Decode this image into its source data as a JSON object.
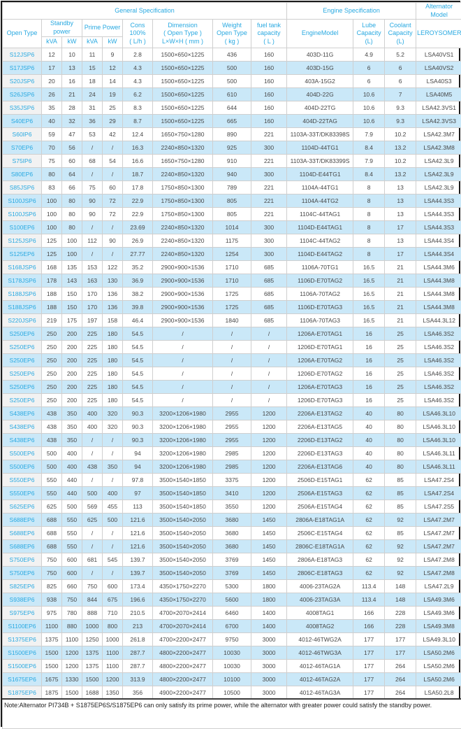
{
  "header": {
    "general": "General Specification",
    "engine_spec": "Engine Specification",
    "alternator_model": "Alternator Model",
    "open_type": "Open Type",
    "standby": "Standby\npower",
    "prime": "Prime Power",
    "kva": "kVA",
    "kw": "kW",
    "cons": "Cons\n100%\n( L/h )",
    "dimension": "Dimension\n( Open Type )\nL×W×H ( mm )",
    "weight": "Weight\nOpen Type\n( kg )",
    "fuel": "fuel tank\ncapacity\n( L )",
    "engine_model": "EngineModel",
    "lube": "Lube\nCapacity\n(L)",
    "coolant": "Coolant\nCapacity\n(L)",
    "leroysomer": "LEROYSOMER"
  },
  "row_fields": [
    "model",
    "standby_kva",
    "standby_kw",
    "prime_kva",
    "prime_kw",
    "cons_100pct_lh",
    "dimension_mm",
    "weight_kg",
    "fuel_tank_l",
    "engine_model",
    "lube_capacity_l",
    "coolant_capacity_l",
    "alternator"
  ],
  "rows": [
    [
      "S12JSP6",
      "12",
      "10",
      "11",
      "9",
      "2.8",
      "1500×650×1225",
      "436",
      "160",
      "403D-11G",
      "4.9",
      "5.2",
      "LSA40VS1"
    ],
    [
      "S17JSP6",
      "17",
      "13",
      "15",
      "12",
      "4.3",
      "1500×650×1225",
      "500",
      "160",
      "403D-15G",
      "6",
      "6",
      "LSA40VS2"
    ],
    [
      "S20JSP6",
      "20",
      "16",
      "18",
      "14",
      "4.3",
      "1500×650×1225",
      "500",
      "160",
      "403A-15G2",
      "6",
      "6",
      "LSA40S3"
    ],
    [
      "S26JSP6",
      "26",
      "21",
      "24",
      "19",
      "6.2",
      "1500×650×1225",
      "610",
      "160",
      "404D-22G",
      "10.6",
      "7",
      "LSA40M5"
    ],
    [
      "S35JSP6",
      "35",
      "28",
      "31",
      "25",
      "8.3",
      "1500×650×1225",
      "644",
      "160",
      "404D-22TG",
      "10.6",
      "9.3",
      "LSA42.3VS1"
    ],
    [
      "S40EP6",
      "40",
      "32",
      "36",
      "29",
      "8.7",
      "1500×650×1225",
      "665",
      "160",
      "404D-22TAG",
      "10.6",
      "9.3",
      "LSA42.3VS3"
    ],
    [
      "S60IP6",
      "59",
      "47",
      "53",
      "42",
      "12.4",
      "1650×750×1280",
      "890",
      "221",
      "1103A-33T/DK83398S",
      "7.9",
      "10.2",
      "LSA42.3M7"
    ],
    [
      "S70EP6",
      "70",
      "56",
      "/",
      "/",
      "16.3",
      "2240×850×1320",
      "925",
      "300",
      "1104D-44TG1",
      "8.4",
      "13.2",
      "LSA42.3M8"
    ],
    [
      "S75IP6",
      "75",
      "60",
      "68",
      "54",
      "16.6",
      "1650×750×1280",
      "910",
      "221",
      "1103A-33T/DK83399S",
      "7.9",
      "10.2",
      "LSA42.3L9"
    ],
    [
      "S80EP6",
      "80",
      "64",
      "/",
      "/",
      "18.7",
      "2240×850×1320",
      "940",
      "300",
      "1104D-E44TG1",
      "8.4",
      "13.2",
      "LSA42.3L9"
    ],
    [
      "S85JSP6",
      "83",
      "66",
      "75",
      "60",
      "17.8",
      "1750×850×1300",
      "789",
      "221",
      "1104A-44TG1",
      "8",
      "13",
      "LSA42.3L9"
    ],
    [
      "S100JSP6",
      "100",
      "80",
      "90",
      "72",
      "22.9",
      "1750×850×1300",
      "805",
      "221",
      "1104A-44TG2",
      "8",
      "13",
      "LSA44.3S3"
    ],
    [
      "S100JSP6",
      "100",
      "80",
      "90",
      "72",
      "22.9",
      "1750×850×1300",
      "805",
      "221",
      "1104C-44TAG1",
      "8",
      "13",
      "LSA44.3S3"
    ],
    [
      "S100EP6",
      "100",
      "80",
      "/",
      "/",
      "23.69",
      "2240×850×1320",
      "1014",
      "300",
      "1104D-E44TAG1",
      "8",
      "17",
      "LSA44.3S3"
    ],
    [
      "S125JSP6",
      "125",
      "100",
      "112",
      "90",
      "26.9",
      "2240×850×1320",
      "1175",
      "300",
      "1104C-44TAG2",
      "8",
      "13",
      "LSA44.3S4"
    ],
    [
      "S125EP6",
      "125",
      "100",
      "/",
      "/",
      "27.77",
      "2240×850×1320",
      "1254",
      "300",
      "1104D-E44TAG2",
      "8",
      "17",
      "LSA44.3S4"
    ],
    [
      "S168JSP6",
      "168",
      "135",
      "153",
      "122",
      "35.2",
      "2900×900×1536",
      "1710",
      "685",
      "1106A-70TG1",
      "16.5",
      "21",
      "LSA44.3M6"
    ],
    [
      "S178JSP6",
      "178",
      "143",
      "163",
      "130",
      "36.9",
      "2900×900×1536",
      "1710",
      "685",
      "1106D-E70TAG2",
      "16.5",
      "21",
      "LSA44.3M8"
    ],
    [
      "S188JSP6",
      "188",
      "150",
      "170",
      "136",
      "38.2",
      "2900×900×1536",
      "1725",
      "685",
      "1106A-70TAG2",
      "16.5",
      "21",
      "LSA44.3M8"
    ],
    [
      "S188JSP6",
      "188",
      "150",
      "170",
      "136",
      "39.8",
      "2900×900×1536",
      "1725",
      "685",
      "1106D-E70TAG3",
      "16.5",
      "21",
      "LSA44.3M8"
    ],
    [
      "S220JSP6",
      "219",
      "175",
      "197",
      "158",
      "46.4",
      "2900×900×1536",
      "1840",
      "685",
      "1106A-70TAG3",
      "16.5",
      "21",
      "LSA44.3L12"
    ],
    [
      "S250EP6",
      "250",
      "200",
      "225",
      "180",
      "54.5",
      "/",
      "/",
      "/",
      "1206A-E70TAG1",
      "16",
      "25",
      "LSA46.3S2"
    ],
    [
      "S250EP6",
      "250",
      "200",
      "225",
      "180",
      "54.5",
      "/",
      "/",
      "/",
      "1206D-E70TAG1",
      "16",
      "25",
      "LSA46.3S2"
    ],
    [
      "S250EP6",
      "250",
      "200",
      "225",
      "180",
      "54.5",
      "/",
      "/",
      "/",
      "1206A-E70TAG2",
      "16",
      "25",
      "LSA46.3S2"
    ],
    [
      "S250EP6",
      "250",
      "200",
      "225",
      "180",
      "54.5",
      "/",
      "/",
      "/",
      "1206D-E70TAG2",
      "16",
      "25",
      "LSA46.3S2"
    ],
    [
      "S250EP6",
      "250",
      "200",
      "225",
      "180",
      "54.5",
      "/",
      "/",
      "/",
      "1206A-E70TAG3",
      "16",
      "25",
      "LSA46.3S2"
    ],
    [
      "S250EP6",
      "250",
      "200",
      "225",
      "180",
      "54.5",
      "/",
      "/",
      "/",
      "1206D-E70TAG3",
      "16",
      "25",
      "LSA46.3S2"
    ],
    [
      "S438EP6",
      "438",
      "350",
      "400",
      "320",
      "90.3",
      "3200×1206×1980",
      "2955",
      "1200",
      "2206A-E13TAG2",
      "40",
      "80",
      "LSA46.3L10"
    ],
    [
      "S438EP6",
      "438",
      "350",
      "400",
      "320",
      "90.3",
      "3200×1206×1980",
      "2955",
      "1200",
      "2206A-E13TAG5",
      "40",
      "80",
      "LSA46.3L10"
    ],
    [
      "S438EP6",
      "438",
      "350",
      "/",
      "/",
      "90.3",
      "3200×1206×1980",
      "2955",
      "1200",
      "2206D-E13TAG2",
      "40",
      "80",
      "LSA46.3L10"
    ],
    [
      "S500EP6",
      "500",
      "400",
      "/",
      "/",
      "94",
      "3200×1206×1980",
      "2985",
      "1200",
      "2206D-E13TAG3",
      "40",
      "80",
      "LSA46.3L11"
    ],
    [
      "S500EP6",
      "500",
      "400",
      "438",
      "350",
      "94",
      "3200×1206×1980",
      "2985",
      "1200",
      "2206A-E13TAG6",
      "40",
      "80",
      "LSA46.3L11"
    ],
    [
      "S550EP6",
      "550",
      "440",
      "/",
      "/",
      "97.8",
      "3500×1540×1850",
      "3375",
      "1200",
      "2506D-E15TAG1",
      "62",
      "85",
      "LSA47.2S4"
    ],
    [
      "S550EP6",
      "550",
      "440",
      "500",
      "400",
      "97",
      "3500×1540×1850",
      "3410",
      "1200",
      "2506A-E15TAG3",
      "62",
      "85",
      "LSA47.2S4"
    ],
    [
      "S625EP6",
      "625",
      "500",
      "569",
      "455",
      "113",
      "3500×1540×1850",
      "3550",
      "1200",
      "2506A-E15TAG4",
      "62",
      "85",
      "LSA47.2S5"
    ],
    [
      "S688EP6",
      "688",
      "550",
      "625",
      "500",
      "121.6",
      "3500×1540×2050",
      "3680",
      "1450",
      "2806A-E18TAG1A",
      "62",
      "92",
      "LSA47.2M7"
    ],
    [
      "S688EP6",
      "688",
      "550",
      "/",
      "/",
      "121.6",
      "3500×1540×2050",
      "3680",
      "1450",
      "2506C-E15TAG4",
      "62",
      "85",
      "LSA47.2M7"
    ],
    [
      "S688EP6",
      "688",
      "550",
      "/",
      "/",
      "121.6",
      "3500×1540×2050",
      "3680",
      "1450",
      "2806C-E18TAG1A",
      "62",
      "92",
      "LSA47.2M7"
    ],
    [
      "S750EP6",
      "750",
      "600",
      "681",
      "545",
      "139.7",
      "3500×1540×2050",
      "3769",
      "1450",
      "2806A-E18TAG3",
      "62",
      "92",
      "LSA47.2M8"
    ],
    [
      "S750EP6",
      "750",
      "600",
      "/",
      "/",
      "139.7",
      "3500×1540×2050",
      "3769",
      "1450",
      "2806C-E18TAG3",
      "62",
      "92",
      "LSA47.2M8"
    ],
    [
      "S825EP6",
      "825",
      "660",
      "750",
      "600",
      "173.4",
      "4350×1750×2270",
      "5300",
      "1800",
      "4006-23TAG2A",
      "113.4",
      "148",
      "LSA47.2L9"
    ],
    [
      "S938EP6",
      "938",
      "750",
      "844",
      "675",
      "196.6",
      "4350×1750×2270",
      "5600",
      "1800",
      "4006-23TAG3A",
      "113.4",
      "148",
      "LSA49.3M6"
    ],
    [
      "S975EP6",
      "975",
      "780",
      "888",
      "710",
      "210.5",
      "4700×2070×2414",
      "6460",
      "1400",
      "4008TAG1",
      "166",
      "228",
      "LSA49.3M6"
    ],
    [
      "S1100EP6",
      "1100",
      "880",
      "1000",
      "800",
      "213",
      "4700×2070×2414",
      "6700",
      "1400",
      "4008TAG2",
      "166",
      "228",
      "LSA49.3M8"
    ],
    [
      "S1375EP6",
      "1375",
      "1100",
      "1250",
      "1000",
      "261.8",
      "4700×2200×2477",
      "9750",
      "3000",
      "4012-46TWG2A",
      "177",
      "177",
      "LSA49.3L10"
    ],
    [
      "S1500EP6",
      "1500",
      "1200",
      "1375",
      "1100",
      "287.7",
      "4800×2200×2477",
      "10030",
      "3000",
      "4012-46TWG3A",
      "177",
      "177",
      "LSA50.2M6"
    ],
    [
      "S1500EP6",
      "1500",
      "1200",
      "1375",
      "1100",
      "287.7",
      "4800×2200×2477",
      "10030",
      "3000",
      "4012-46TAG1A",
      "177",
      "264",
      "LSA50.2M6"
    ],
    [
      "S1675EP6",
      "1675",
      "1330",
      "1500",
      "1200",
      "313.9",
      "4800×2200×2477",
      "10100",
      "3000",
      "4012-46TAG2A",
      "177",
      "264",
      "LSA50.2M6"
    ],
    [
      "S1875EP6",
      "1875",
      "1500",
      "1688",
      "1350",
      "356",
      "4900×2200×2477",
      "10500",
      "3000",
      "4012-46TAG3A",
      "177",
      "264",
      "LSA50.2L8"
    ]
  ],
  "note": "Note:Alternator PI734B + S1875EP6S/S1875EP6 can only satisfy its prime power, while the alternator with greater power could satisfy the standby power.",
  "colors": {
    "accent": "#29a9e1",
    "row_alt_bg": "#cae8f8",
    "model_col_bg": "#f2f2f2",
    "grid_border": "#cfcfcf",
    "outer_border": "#1a1a1a"
  }
}
